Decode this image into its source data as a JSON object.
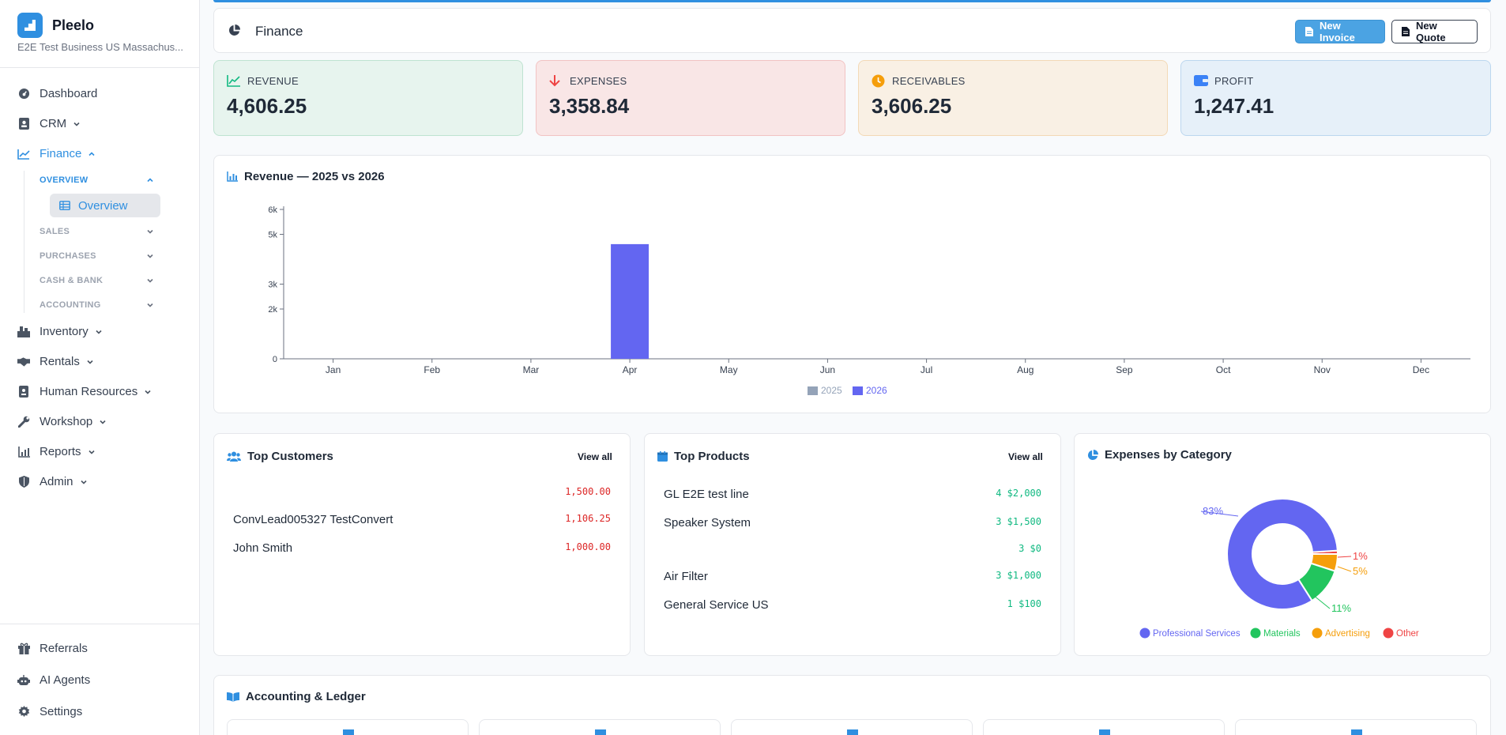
{
  "brand": {
    "name": "Pleelo",
    "subtitle": "E2E Test Business US Massachus..."
  },
  "sidebar": {
    "items": [
      {
        "label": "Dashboard"
      },
      {
        "label": "CRM"
      },
      {
        "label": "Finance"
      },
      {
        "label": "Inventory"
      },
      {
        "label": "Rentals"
      },
      {
        "label": "Human Resources"
      },
      {
        "label": "Workshop"
      },
      {
        "label": "Reports"
      },
      {
        "label": "Admin"
      }
    ],
    "finance_sub": [
      {
        "label": "OVERVIEW"
      },
      {
        "label": "SALES"
      },
      {
        "label": "PURCHASES"
      },
      {
        "label": "CASH & BANK"
      },
      {
        "label": "ACCOUNTING"
      }
    ],
    "selected_sub": "Overview",
    "footer": [
      {
        "label": "Referrals"
      },
      {
        "label": "AI Agents"
      },
      {
        "label": "Settings"
      }
    ]
  },
  "header": {
    "title": "Finance",
    "new_invoice": "New Invoice",
    "new_quote": "New Quote"
  },
  "kpis": {
    "revenue": {
      "label": "REVENUE",
      "value": "4,606.25",
      "color": "#10b981"
    },
    "expenses": {
      "label": "EXPENSES",
      "value": "3,358.84",
      "color": "#ef4444"
    },
    "receivables": {
      "label": "RECEIVABLES",
      "value": "3,606.25",
      "color": "#f59e0b"
    },
    "profit": {
      "label": "PROFIT",
      "value": "1,247.41",
      "color": "#3b82f6"
    }
  },
  "revenue_chart": {
    "title": "Revenue — 2025 vs 2026"
  },
  "chart_data": [
    {
      "type": "bar",
      "title": "Revenue — 2025 vs 2026",
      "categories": [
        "Jan",
        "Feb",
        "Mar",
        "Apr",
        "May",
        "Jun",
        "Jul",
        "Aug",
        "Sep",
        "Oct",
        "Nov",
        "Dec"
      ],
      "series": [
        {
          "name": "2025",
          "color": "#94a3b8",
          "values": [
            0,
            0,
            0,
            0,
            0,
            0,
            0,
            0,
            0,
            0,
            0,
            0
          ]
        },
        {
          "name": "2026",
          "color": "#6366f1",
          "values": [
            0,
            0,
            0,
            4606.25,
            0,
            0,
            0,
            0,
            0,
            0,
            0,
            0
          ]
        }
      ],
      "yticks": [
        0,
        2000,
        3000,
        5000,
        6000
      ],
      "ytick_labels": [
        "0",
        "2k",
        "3k",
        "5k",
        "6k"
      ],
      "ylim": [
        0,
        6000
      ],
      "legend": "bottom"
    },
    {
      "type": "pie",
      "title": "Expenses by Category",
      "labels": [
        "Professional Services",
        "Materials",
        "Advertising",
        "Other"
      ],
      "values": [
        83,
        11,
        5,
        1
      ],
      "value_labels": [
        "83%",
        "11%",
        "5%",
        "1%"
      ],
      "colors": [
        "#6366f1",
        "#22c55e",
        "#f59e0b",
        "#ef4444"
      ],
      "legend": "bottom"
    }
  ],
  "top_customers": {
    "title": "Top Customers",
    "view_all": "View all",
    "rows": [
      {
        "name": "",
        "amount": "1,500.00"
      },
      {
        "name": "ConvLead005327 TestConvert",
        "amount": "1,106.25"
      },
      {
        "name": "John Smith",
        "amount": "1,000.00"
      }
    ]
  },
  "top_products": {
    "title": "Top Products",
    "view_all": "View all",
    "rows": [
      {
        "name": "GL E2E test line",
        "amount": "4 $2,000"
      },
      {
        "name": "Speaker System",
        "amount": "3 $1,500"
      },
      {
        "name": "",
        "amount": "3 $0"
      },
      {
        "name": "Air Filter",
        "amount": "3 $1,000"
      },
      {
        "name": "General Service US",
        "amount": "1 $100"
      }
    ]
  },
  "expenses_category": {
    "title": "Expenses by Category"
  },
  "ledger": {
    "title": "Accounting & Ledger"
  }
}
